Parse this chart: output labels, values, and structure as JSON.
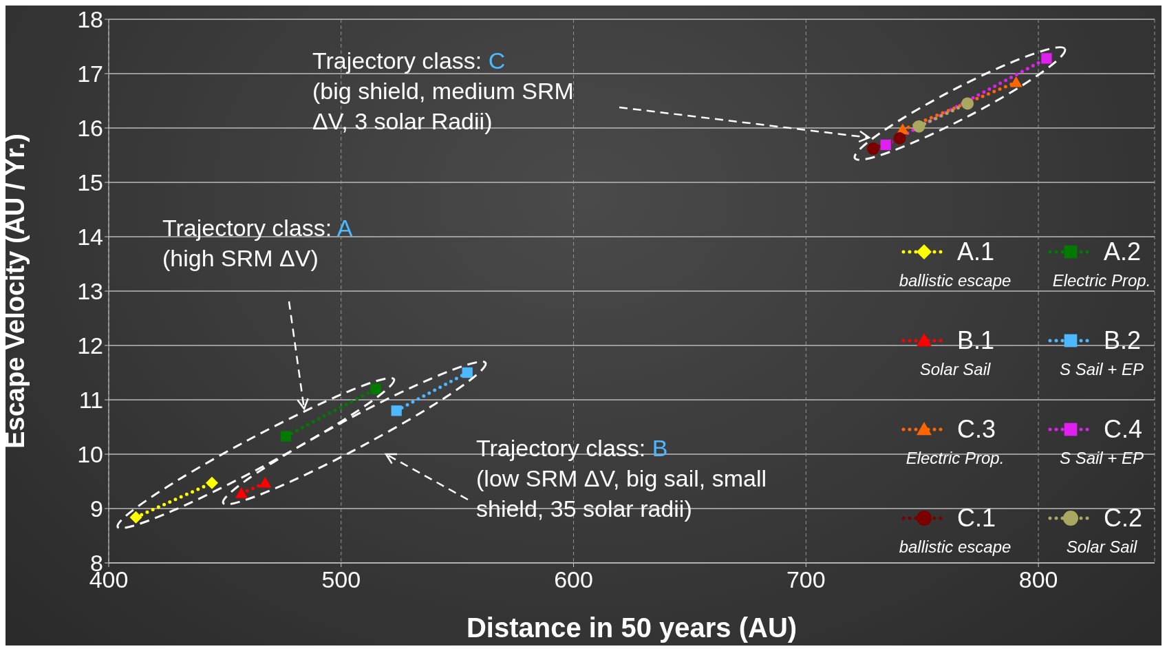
{
  "chart_data": {
    "type": "line",
    "xlabel": "Distance in 50 years (AU)",
    "ylabel": "Escape Velocity (AU / Yr.)",
    "xlim": [
      400,
      850
    ],
    "xticks": [
      400,
      500,
      600,
      700,
      800
    ],
    "ylim": [
      8,
      18
    ],
    "yticks": [
      8,
      9,
      10,
      11,
      12,
      13,
      14,
      15,
      16,
      17,
      18
    ],
    "grid": true,
    "legend": "right",
    "line_style": "dotted",
    "series": [
      {
        "name": "A.1",
        "color": "#ffff00",
        "marker": "diamond",
        "x": [
          411.7,
          444.4
        ],
        "values": [
          8.84,
          9.47
        ]
      },
      {
        "name": "A.2",
        "color": "#007a00",
        "marker": "square",
        "x": [
          476.2,
          514.9
        ],
        "values": [
          10.33,
          11.2
        ]
      },
      {
        "name": "B.1",
        "color": "#ff0000",
        "marker": "triangle",
        "x": [
          457.1,
          467.3
        ],
        "values": [
          9.28,
          9.47
        ]
      },
      {
        "name": "B.2",
        "color": "#4db8ff",
        "marker": "square",
        "x": [
          523.8,
          554.3
        ],
        "values": [
          10.8,
          11.5
        ]
      },
      {
        "name": "C.3",
        "color": "#ff6600",
        "marker": "triangle",
        "x": [
          741.6,
          790.4
        ],
        "values": [
          15.97,
          16.84
        ]
      },
      {
        "name": "C.4",
        "color": "#e020f0",
        "marker": "square",
        "x": [
          734.3,
          803.5
        ],
        "values": [
          15.69,
          17.28
        ]
      },
      {
        "name": "C.1",
        "color": "#7a0000",
        "marker": "circle",
        "x": [
          728.9,
          740.3
        ],
        "values": [
          15.62,
          15.81
        ]
      },
      {
        "name": "C.2",
        "color": "#a8a860",
        "marker": "circle",
        "x": [
          748.6,
          769.5
        ],
        "values": [
          16.03,
          16.45
        ]
      }
    ],
    "annotations": [
      "Trajectory class: C\n(big shield, medium SRM\nΔV, 3 solar Radii)",
      "Trajectory class: A\n(high SRM ΔV)",
      "Trajectory class: B\n(low SRM ΔV, big sail, small\nshield, 35 solar radii)",
      "ballistic escape",
      "Electric Prop.",
      "Solar Sail",
      "S Sail + EP",
      "Electric Prop.",
      "S Sail + EP",
      "ballistic escape",
      "Solar Sail"
    ]
  }
}
